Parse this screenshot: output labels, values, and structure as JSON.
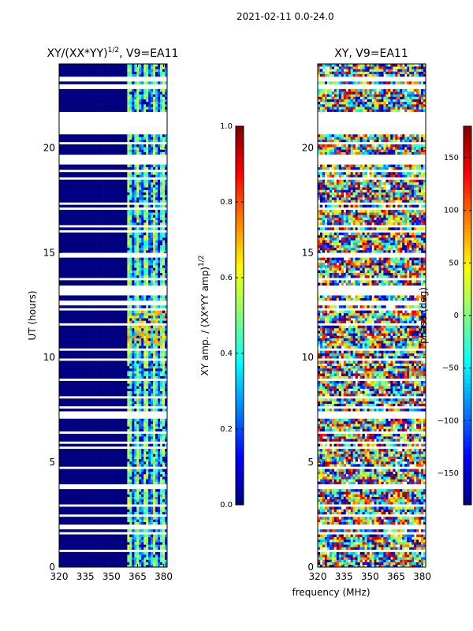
{
  "suptitle": "2021-02-11 0.0-24.0",
  "chart_data": [
    {
      "type": "heatmap",
      "title_prefix": "XY/(XX*YY)",
      "title_exponent": "1/2",
      "title_suffix": ", V9=EA11",
      "xlabel": "",
      "ylabel": "UT (hours)",
      "xlim": [
        320,
        382
      ],
      "ylim": [
        0,
        24
      ],
      "xticks": [
        320,
        335,
        350,
        365,
        380
      ],
      "yticks": [
        0,
        5,
        10,
        15,
        20
      ],
      "signal_band_mhz": [
        359,
        382
      ],
      "colorbar": {
        "label_prefix": "XY amp. / (XX*YY amp)",
        "label_exponent": "1/2",
        "range": [
          0.0,
          1.0
        ],
        "ticks": [
          0.0,
          0.2,
          0.4,
          0.6,
          0.8,
          1.0
        ],
        "tick_labels": [
          "0.0",
          "0.2",
          "0.4",
          "0.6",
          "0.8",
          "1.0"
        ],
        "colormap": "jet"
      }
    },
    {
      "type": "heatmap",
      "title": "XY, V9=EA11",
      "xlabel": "frequency (MHz)",
      "ylabel": "",
      "xlim": [
        320,
        382
      ],
      "ylim": [
        0,
        24
      ],
      "xticks": [
        320,
        335,
        350,
        365,
        380
      ],
      "yticks": [
        0,
        5,
        10,
        15,
        20
      ],
      "colorbar": {
        "label": "phase (deg)",
        "range": [
          -180,
          180
        ],
        "ticks": [
          -150,
          -100,
          -50,
          0,
          50,
          100,
          150
        ],
        "tick_labels": [
          "−150",
          "−100",
          "−50",
          "0",
          "50",
          "100",
          "150"
        ],
        "colormap": "jet"
      }
    }
  ],
  "colors": {
    "masked": "#ffffff",
    "axes": "#000000"
  }
}
